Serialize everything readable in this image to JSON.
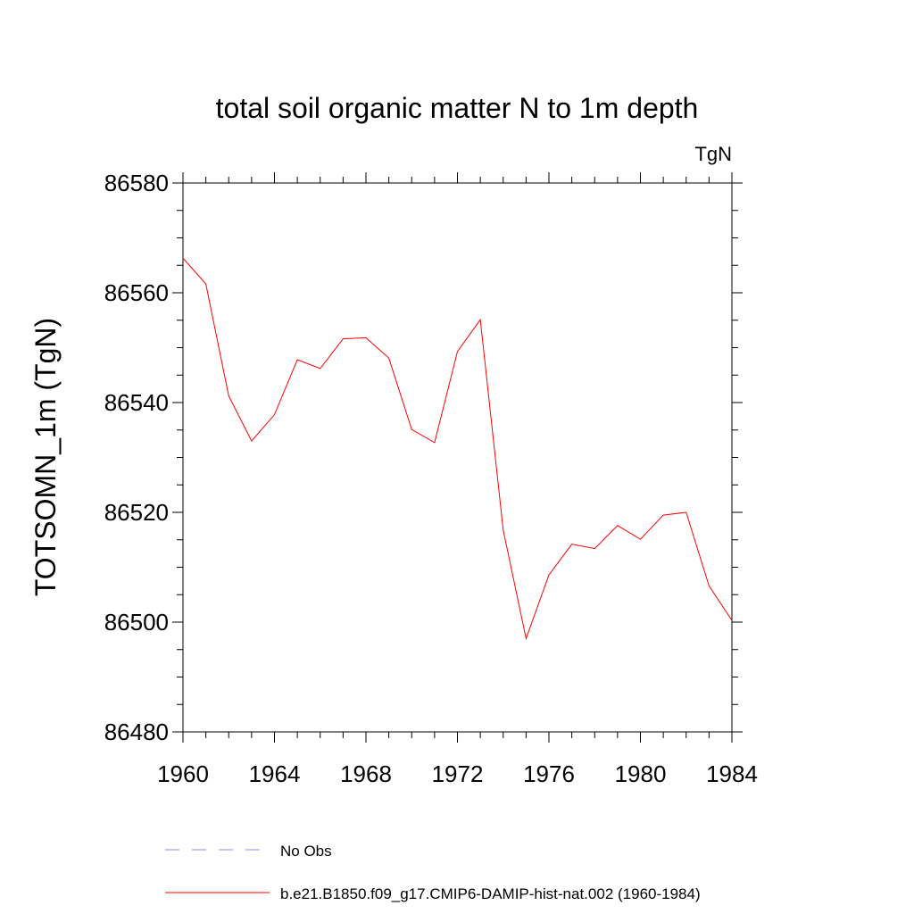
{
  "chart_data": {
    "type": "line",
    "title": "total soil organic matter N to 1m depth",
    "units_label": "TgN",
    "ylabel": "TOTSOMN_1m  (TgN)",
    "xlabel": "",
    "xlim": [
      1960,
      1984
    ],
    "ylim": [
      86480,
      86580
    ],
    "x_ticks": [
      "1960",
      "1964",
      "1968",
      "1972",
      "1976",
      "1980",
      "1984"
    ],
    "y_ticks": [
      "86480",
      "86500",
      "86520",
      "86540",
      "86560",
      "86580"
    ],
    "x": [
      1960,
      1961,
      1962,
      1963,
      1964,
      1965,
      1966,
      1967,
      1968,
      1969,
      1970,
      1971,
      1972,
      1973,
      1974,
      1975,
      1976,
      1977,
      1978,
      1979,
      1980,
      1981,
      1982,
      1983,
      1984
    ],
    "series": [
      {
        "name": "b.e21.B1850.f09_g17.CMIP6-DAMIP-hist-nat.002 (1960-1984)",
        "color": "#ff0000",
        "values": [
          86566.3,
          86561.6,
          86541.2,
          86533.0,
          86537.8,
          86547.8,
          86546.2,
          86551.6,
          86551.8,
          86548.1,
          86535.1,
          86532.7,
          86549.3,
          86555.1,
          86516.8,
          86497.0,
          86508.6,
          86514.2,
          86513.4,
          86517.6,
          86515.1,
          86519.5,
          86520.0,
          86506.6,
          86500.3
        ]
      }
    ],
    "legend": [
      {
        "label": "No Obs",
        "color": "#8888dd",
        "style": "dashed"
      },
      {
        "label": "b.e21.B1850.f09_g17.CMIP6-DAMIP-hist-nat.002 (1960-1984)",
        "color": "#ff0000",
        "style": "solid"
      }
    ],
    "grid": false,
    "legend_position": "bottom"
  }
}
